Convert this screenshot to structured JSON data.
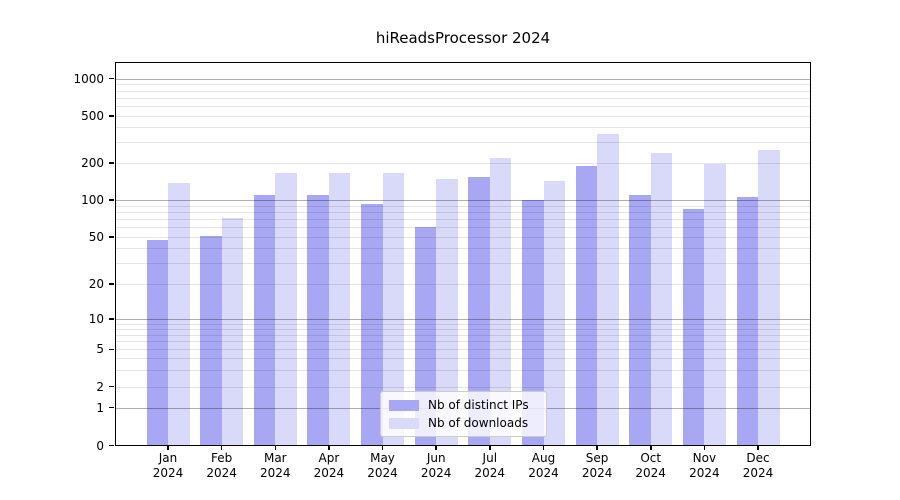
{
  "title": "hiReadsProcessor 2024",
  "chart_data": {
    "type": "bar",
    "title": "hiReadsProcessor 2024",
    "categories": [
      "Jan 2024",
      "Feb 2024",
      "Mar 2024",
      "Apr 2024",
      "May 2024",
      "Jun 2024",
      "Jul 2024",
      "Aug 2024",
      "Sep 2024",
      "Oct 2024",
      "Nov 2024",
      "Dec 2024"
    ],
    "series": [
      {
        "name": "Nb of distinct IPs",
        "color": "#a7a7f3",
        "values": [
          47,
          51,
          110,
          110,
          93,
          60,
          154,
          100,
          191,
          110,
          85,
          106
        ]
      },
      {
        "name": "Nb of downloads",
        "color": "#d9d9fa",
        "values": [
          138,
          72,
          167,
          167,
          167,
          148,
          221,
          143,
          352,
          242,
          196,
          258
        ]
      }
    ],
    "y_scale": "symlog",
    "y_ticks": [
      0,
      1,
      2,
      5,
      10,
      20,
      50,
      100,
      200,
      500,
      1000
    ],
    "y_tick_labels": [
      "0",
      "1",
      "2",
      "5",
      "10",
      "20",
      "50",
      "100",
      "200",
      "500",
      "1000"
    ],
    "ylim": [
      0,
      1400
    ],
    "xlabel": "",
    "ylabel": "",
    "grid": "horizontal",
    "legend_position": "lower center inside"
  },
  "colors": {
    "bar_distinct_ips": "#a7a7f3",
    "bar_downloads": "#d9d9fa",
    "grid_major": "#b0b0b0",
    "grid_minor": "#e8e8e8",
    "spine": "#000000",
    "background": "#ffffff"
  }
}
